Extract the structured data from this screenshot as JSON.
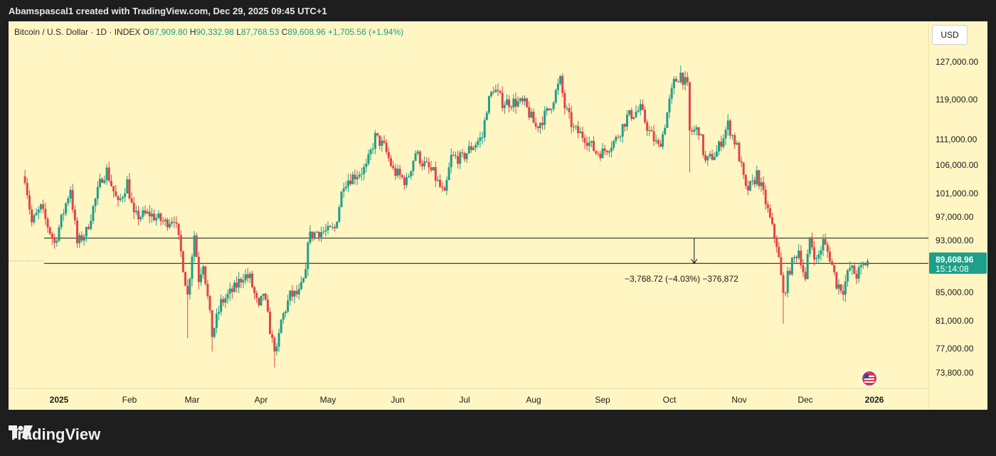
{
  "header": {
    "attribution": "Abamspascal1 created with TradingView.com, Dec 29, 2025 09:45 UTC+1"
  },
  "legend": {
    "title": "Bitcoin / U.S. Dollar · 1D · INDEX",
    "o_label": "O",
    "o": "87,909.80",
    "h_label": "H",
    "h": "90,332.98",
    "l_label": "L",
    "l": "87,768.53",
    "c_label": "C",
    "c": "89,608.96",
    "change": "+1,705.56 (+1.94%)"
  },
  "currency_button": "USD",
  "footer": {
    "brand": "TradingView"
  },
  "colors": {
    "up": "#1e9f8a",
    "down": "#e0444a",
    "background": "#fff6c4",
    "price_tag": "#1e9f8a"
  },
  "chart_data": {
    "type": "candlestick",
    "symbol": "Bitcoin / U.S. Dollar",
    "interval": "1D",
    "y_ticks": [
      127000,
      119000,
      111000,
      106000,
      101000,
      97000,
      93000,
      89000,
      85000,
      81000,
      77000,
      73800
    ],
    "y_tick_labels": [
      "127,000.00",
      "119,000.00",
      "111,000.00",
      "106,000.00",
      "101,000.00",
      "97,000.00",
      "93,000.00",
      "85,000.00",
      "81,000.00",
      "77,000.00",
      "73,800.00"
    ],
    "x_labels": [
      "2025",
      "Feb",
      "Mar",
      "Apr",
      "May",
      "Jun",
      "Jul",
      "Aug",
      "Sep",
      "Oct",
      "Nov",
      "Dec",
      "2026"
    ],
    "last_price": {
      "value": 89608.96,
      "label": "89,608.96",
      "countdown": "15:14:08"
    },
    "horizontal_lines": [
      93400,
      89200
    ],
    "measure_label": "−3,768.72 (−4.03%) −376,872",
    "close_path": [
      [
        "2024-12-17",
        104000
      ],
      [
        "2024-12-20",
        96000
      ],
      [
        "2024-12-24",
        98500
      ],
      [
        "2024-12-30",
        92500
      ],
      [
        "2025-01-06",
        102000
      ],
      [
        "2025-01-09",
        92500
      ],
      [
        "2025-01-13",
        94500
      ],
      [
        "2025-01-20",
        104000
      ],
      [
        "2025-01-22",
        105000
      ],
      [
        "2025-01-27",
        99000
      ],
      [
        "2025-01-31",
        103000
      ],
      [
        "2025-02-03",
        97000
      ],
      [
        "2025-02-10",
        97500
      ],
      [
        "2025-02-17",
        96000
      ],
      [
        "2025-02-21",
        97000
      ],
      [
        "2025-02-24",
        91000
      ],
      [
        "2025-02-27",
        84500
      ],
      [
        "2025-03-02",
        94000
      ],
      [
        "2025-03-04",
        87000
      ],
      [
        "2025-03-06",
        89500
      ],
      [
        "2025-03-10",
        79000
      ],
      [
        "2025-03-14",
        83500
      ],
      [
        "2025-03-20",
        85500
      ],
      [
        "2025-03-24",
        87500
      ],
      [
        "2025-03-27",
        87000
      ],
      [
        "2025-03-31",
        82500
      ],
      [
        "2025-04-02",
        85000
      ],
      [
        "2025-04-06",
        78000
      ],
      [
        "2025-04-08",
        76500
      ],
      [
        "2025-04-10",
        81000
      ],
      [
        "2025-04-14",
        84500
      ],
      [
        "2025-04-18",
        84800
      ],
      [
        "2025-04-21",
        87500
      ],
      [
        "2025-04-22",
        93500
      ],
      [
        "2025-04-26",
        94500
      ],
      [
        "2025-05-01",
        94500
      ],
      [
        "2025-05-04",
        95000
      ],
      [
        "2025-05-08",
        103000
      ],
      [
        "2025-05-12",
        104000
      ],
      [
        "2025-05-18",
        105500
      ],
      [
        "2025-05-22",
        111500
      ],
      [
        "2025-05-26",
        109500
      ],
      [
        "2025-05-30",
        105000
      ],
      [
        "2025-06-05",
        103000
      ],
      [
        "2025-06-09",
        108500
      ],
      [
        "2025-06-12",
        106500
      ],
      [
        "2025-06-17",
        104500
      ],
      [
        "2025-06-22",
        100500
      ],
      [
        "2025-06-25",
        107500
      ],
      [
        "2025-06-30",
        107300
      ],
      [
        "2025-07-03",
        109000
      ],
      [
        "2025-07-09",
        111500
      ],
      [
        "2025-07-11",
        117500
      ],
      [
        "2025-07-14",
        121500
      ],
      [
        "2025-07-18",
        118500
      ],
      [
        "2025-07-24",
        118500
      ],
      [
        "2025-07-28",
        118000
      ],
      [
        "2025-08-02",
        113500
      ],
      [
        "2025-08-04",
        114500
      ],
      [
        "2025-08-08",
        117000
      ],
      [
        "2025-08-13",
        123000
      ],
      [
        "2025-08-15",
        117500
      ],
      [
        "2025-08-19",
        113000
      ],
      [
        "2025-08-24",
        111500
      ],
      [
        "2025-08-29",
        108500
      ],
      [
        "2025-09-01",
        108500
      ],
      [
        "2025-09-07",
        111000
      ],
      [
        "2025-09-12",
        115500
      ],
      [
        "2025-09-18",
        117000
      ],
      [
        "2025-09-22",
        112500
      ],
      [
        "2025-09-26",
        109500
      ],
      [
        "2025-09-28",
        112000
      ],
      [
        "2025-10-01",
        118500
      ],
      [
        "2025-10-03",
        122500
      ],
      [
        "2025-10-06",
        124500
      ],
      [
        "2025-10-09",
        121500
      ],
      [
        "2025-10-10",
        112500
      ],
      [
        "2025-10-14",
        113000
      ],
      [
        "2025-10-17",
        106500
      ],
      [
        "2025-10-22",
        108500
      ],
      [
        "2025-10-27",
        114000
      ],
      [
        "2025-10-31",
        109500
      ],
      [
        "2025-11-04",
        101500
      ],
      [
        "2025-11-07",
        102500
      ],
      [
        "2025-11-09",
        104500
      ],
      [
        "2025-11-13",
        99500
      ],
      [
        "2025-11-16",
        95000
      ],
      [
        "2025-11-18",
        92500
      ],
      [
        "2025-11-21",
        84500
      ],
      [
        "2025-11-24",
        88500
      ],
      [
        "2025-11-28",
        91500
      ],
      [
        "2025-12-01",
        86500
      ],
      [
        "2025-12-03",
        93500
      ],
      [
        "2025-12-06",
        89500
      ],
      [
        "2025-12-09",
        92800
      ],
      [
        "2025-12-12",
        90200
      ],
      [
        "2025-12-15",
        86300
      ],
      [
        "2025-12-18",
        85500
      ],
      [
        "2025-12-21",
        88500
      ],
      [
        "2025-12-24",
        87500
      ],
      [
        "2025-12-29",
        89600
      ]
    ],
    "wick_extremes": [
      [
        "2025-02-27",
        78500
      ],
      [
        "2025-03-10",
        76600
      ],
      [
        "2025-04-07",
        74500
      ],
      [
        "2025-05-22",
        112000
      ],
      [
        "2025-08-14",
        124400
      ],
      [
        "2025-10-06",
        126200
      ],
      [
        "2025-10-10",
        104700
      ],
      [
        "2025-11-21",
        80600
      ]
    ]
  }
}
